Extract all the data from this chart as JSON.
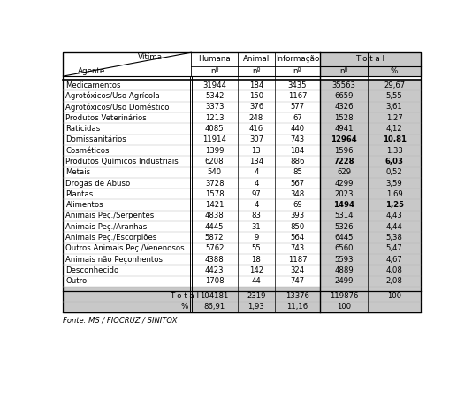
{
  "header_vitima": "Vítima",
  "header_agente": "Agente",
  "col_labels_r1": [
    "Humana",
    "Animal",
    "Informação",
    "T o t a l"
  ],
  "col_subheaders": [
    "nº",
    "nº",
    "nº",
    "nº",
    "%"
  ],
  "rows": [
    [
      "Medicamentos",
      "31944",
      "184",
      "3435",
      "35563",
      "29,67"
    ],
    [
      "Agrotóxicos/Uso Agrícola",
      "5342",
      "150",
      "1167",
      "6659",
      "5,55"
    ],
    [
      "Agrotóxicos/Uso Doméstico",
      "3373",
      "376",
      "577",
      "4326",
      "3,61"
    ],
    [
      "Produtos Veterinários",
      "1213",
      "248",
      "67",
      "1528",
      "1,27"
    ],
    [
      "Raticidas",
      "4085",
      "416",
      "440",
      "4941",
      "4,12"
    ],
    [
      "Domissanitários",
      "11914",
      "307",
      "743",
      "12964",
      "10,81"
    ],
    [
      "Cosméticos",
      "1399",
      "13",
      "184",
      "1596",
      "1,33"
    ],
    [
      "Produtos Químicos Industriais",
      "6208",
      "134",
      "886",
      "7228",
      "6,03"
    ],
    [
      "Metais",
      "540",
      "4",
      "85",
      "629",
      "0,52"
    ],
    [
      "Drogas de Abuso",
      "3728",
      "4",
      "567",
      "4299",
      "3,59"
    ],
    [
      "Plantas",
      "1578",
      "97",
      "348",
      "2023",
      "1,69"
    ],
    [
      "Alimentos",
      "1421",
      "4",
      "69",
      "1494",
      "1,25"
    ],
    [
      "Animais Peç./Serpentes",
      "4838",
      "83",
      "393",
      "5314",
      "4,43"
    ],
    [
      "Animais Peç./Aranhas",
      "4445",
      "31",
      "850",
      "5326",
      "4,44"
    ],
    [
      "Animais Peç./Escorpiões",
      "5872",
      "9",
      "564",
      "6445",
      "5,38"
    ],
    [
      "Outros Animais Peç./Venenosos",
      "5762",
      "55",
      "743",
      "6560",
      "5,47"
    ],
    [
      "Animais não Peçonhentos",
      "4388",
      "18",
      "1187",
      "5593",
      "4,67"
    ],
    [
      "Desconhecido",
      "4423",
      "142",
      "324",
      "4889",
      "4,08"
    ],
    [
      "Outro",
      "1708",
      "44",
      "747",
      "2499",
      "2,08"
    ]
  ],
  "bold_total_rows": [
    5,
    7,
    11
  ],
  "total_row": [
    "T o t a l",
    "104181",
    "2319",
    "13376",
    "119876",
    "100"
  ],
  "pct_row": [
    "%",
    "86,91",
    "1,93",
    "11,16",
    "100",
    ""
  ],
  "fonte": "Fonte: MS / FIOCRUZ / SINITOX",
  "bg_total_col": "#c8c8c8",
  "bg_white": "#ffffff",
  "bg_total_rows": "#c0c0c0"
}
